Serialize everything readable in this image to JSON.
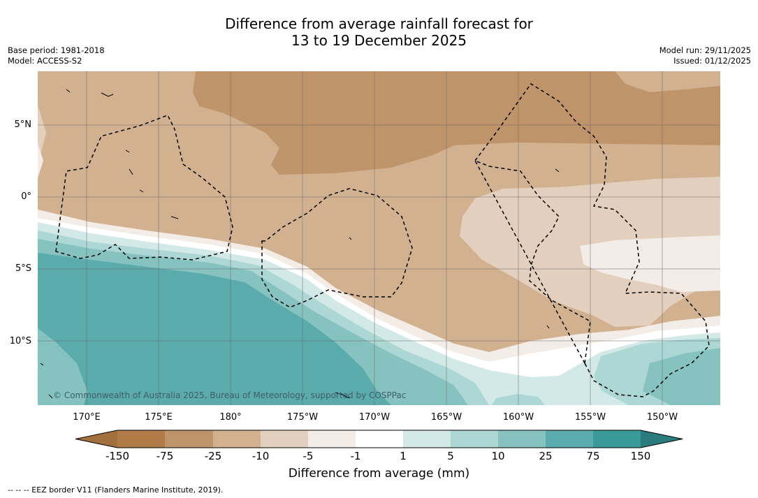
{
  "title_line1": "Difference from average rainfall forecast for",
  "title_line2": "13 to 19 December 2025",
  "base_period": "Base period: 1981-2018",
  "model": "Model: ACCESS-S2",
  "model_run": "Model run: 29/11/2025",
  "issued": "Issued: 01/12/2025",
  "map": {
    "lat_labels": [
      "5°N",
      "0°",
      "5°S",
      "10°S"
    ],
    "lon_labels": [
      "170°E",
      "175°E",
      "180°",
      "175°W",
      "170°W",
      "165°W",
      "160°W",
      "155°W",
      "150°W"
    ],
    "copyright": "© Commonwealth of Australia 2025, Bureau of Meteorology, supported by COSPPac"
  },
  "colorbar": {
    "title": "Difference from average (mm)",
    "ticks": [
      "-150",
      "-75",
      "-25",
      "-10",
      "-5",
      "-1",
      "1",
      "5",
      "10",
      "25",
      "75",
      "150"
    ],
    "colors": {
      "lt_minus150": "#a1703d",
      "m150_m75": "#b07b47",
      "m75_m25": "#c0946a",
      "m25_m10": "#d2b190",
      "m10_m5": "#e3cfbd",
      "m5_m1": "#f4ece6",
      "m1_1": "#ffffff",
      "p1_5": "#d3e9e7",
      "p5_10": "#acd7d5",
      "p10_25": "#85c2c0",
      "p25_75": "#5babac",
      "p75_150": "#3a9a99",
      "gt_150": "#2a7b7c"
    }
  },
  "footnote": "-- -- -- EEZ border V11 (Flanders Marine Institute, 2019)."
}
